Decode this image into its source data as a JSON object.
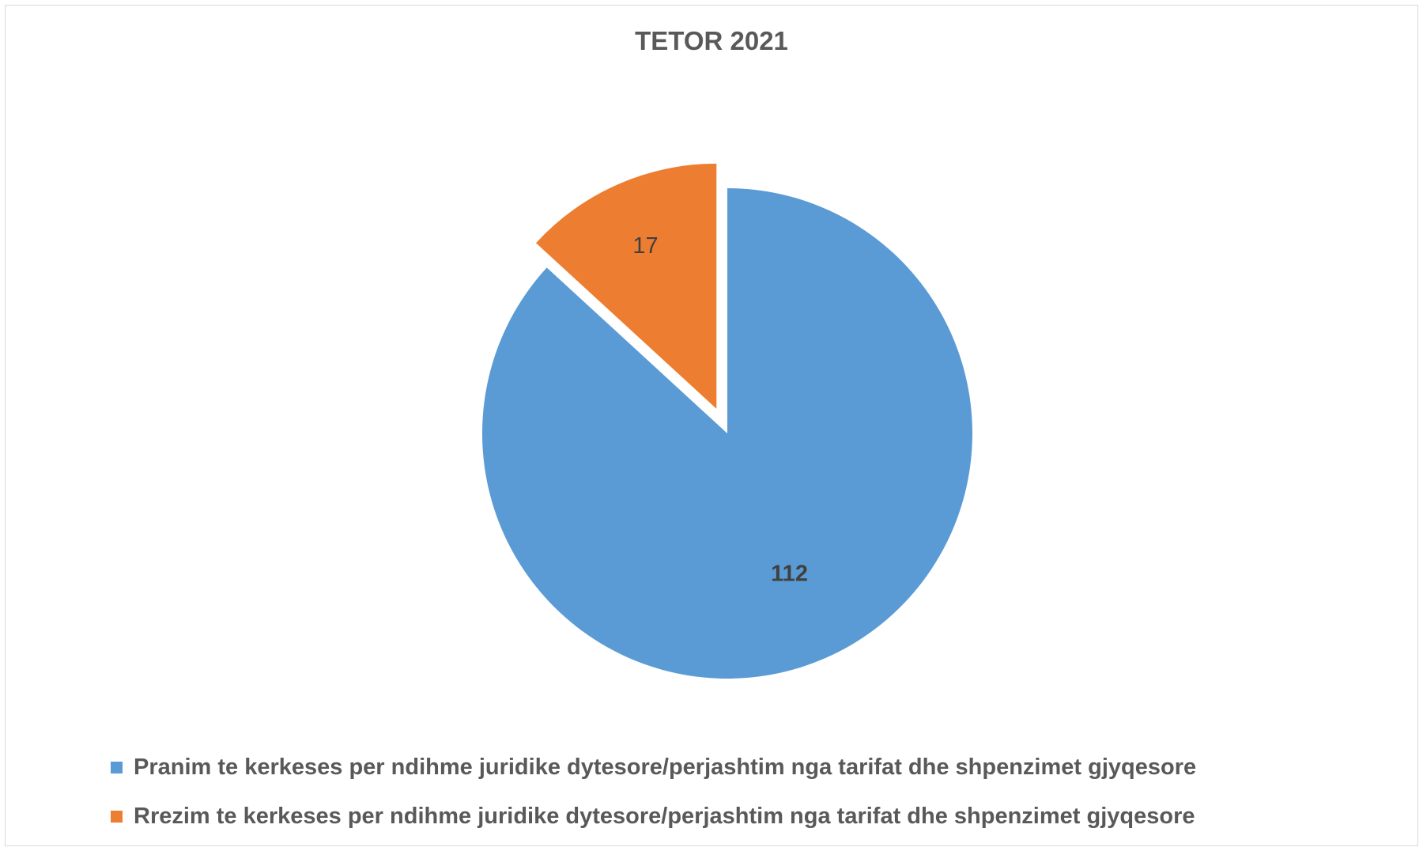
{
  "chart_data": {
    "type": "pie",
    "title": "TETOR 2021",
    "slices": [
      {
        "label": "Pranim te kerkeses per ndihme juridike dytesore/perjashtim nga tarifat dhe shpenzimet gjyqesore",
        "value": 112,
        "color": "#5b9bd5",
        "exploded": false
      },
      {
        "label": "Rrezim te kerkeses per ndihme juridike dytesore/perjashtim nga tarifat dhe shpenzimet gjyqesore",
        "value": 17,
        "color": "#ed7d31",
        "exploded": true
      }
    ],
    "legend_position": "bottom"
  }
}
